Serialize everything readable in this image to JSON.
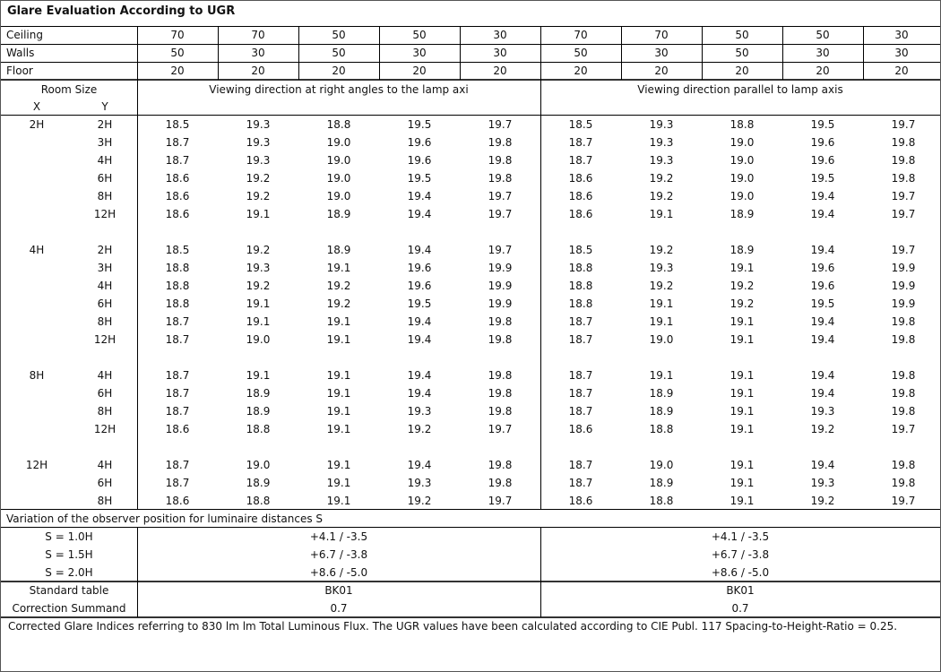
{
  "title": "Glare Evaluation According to UGR",
  "reflectances": {
    "ceiling": {
      "label": "Ceiling",
      "values": [
        "70",
        "70",
        "50",
        "50",
        "30",
        "70",
        "70",
        "50",
        "50",
        "30"
      ]
    },
    "walls": {
      "label": "Walls",
      "values": [
        "50",
        "30",
        "50",
        "30",
        "30",
        "50",
        "30",
        "50",
        "30",
        "30"
      ]
    },
    "floor": {
      "label": "Floor",
      "values": [
        "20",
        "20",
        "20",
        "20",
        "20",
        "20",
        "20",
        "20",
        "20",
        "20"
      ]
    }
  },
  "header": {
    "room_size": "Room Size",
    "x": "X",
    "y": "Y",
    "perpendicular": "Viewing direction at right angles to the lamp axi",
    "parallel": "Viewing direction parallel to lamp axis"
  },
  "groups": [
    {
      "x": "2H",
      "rows": [
        {
          "y": "2H",
          "values": [
            "18.5",
            "19.3",
            "18.8",
            "19.5",
            "19.7",
            "18.5",
            "19.3",
            "18.8",
            "19.5",
            "19.7"
          ]
        },
        {
          "y": "3H",
          "values": [
            "18.7",
            "19.3",
            "19.0",
            "19.6",
            "19.8",
            "18.7",
            "19.3",
            "19.0",
            "19.6",
            "19.8"
          ]
        },
        {
          "y": "4H",
          "values": [
            "18.7",
            "19.3",
            "19.0",
            "19.6",
            "19.8",
            "18.7",
            "19.3",
            "19.0",
            "19.6",
            "19.8"
          ]
        },
        {
          "y": "6H",
          "values": [
            "18.6",
            "19.2",
            "19.0",
            "19.5",
            "19.8",
            "18.6",
            "19.2",
            "19.0",
            "19.5",
            "19.8"
          ]
        },
        {
          "y": "8H",
          "values": [
            "18.6",
            "19.2",
            "19.0",
            "19.4",
            "19.7",
            "18.6",
            "19.2",
            "19.0",
            "19.4",
            "19.7"
          ]
        },
        {
          "y": "12H",
          "values": [
            "18.6",
            "19.1",
            "18.9",
            "19.4",
            "19.7",
            "18.6",
            "19.1",
            "18.9",
            "19.4",
            "19.7"
          ]
        }
      ]
    },
    {
      "x": "4H",
      "rows": [
        {
          "y": "2H",
          "values": [
            "18.5",
            "19.2",
            "18.9",
            "19.4",
            "19.7",
            "18.5",
            "19.2",
            "18.9",
            "19.4",
            "19.7"
          ]
        },
        {
          "y": "3H",
          "values": [
            "18.8",
            "19.3",
            "19.1",
            "19.6",
            "19.9",
            "18.8",
            "19.3",
            "19.1",
            "19.6",
            "19.9"
          ]
        },
        {
          "y": "4H",
          "values": [
            "18.8",
            "19.2",
            "19.2",
            "19.6",
            "19.9",
            "18.8",
            "19.2",
            "19.2",
            "19.6",
            "19.9"
          ]
        },
        {
          "y": "6H",
          "values": [
            "18.8",
            "19.1",
            "19.2",
            "19.5",
            "19.9",
            "18.8",
            "19.1",
            "19.2",
            "19.5",
            "19.9"
          ]
        },
        {
          "y": "8H",
          "values": [
            "18.7",
            "19.1",
            "19.1",
            "19.4",
            "19.8",
            "18.7",
            "19.1",
            "19.1",
            "19.4",
            "19.8"
          ]
        },
        {
          "y": "12H",
          "values": [
            "18.7",
            "19.0",
            "19.1",
            "19.4",
            "19.8",
            "18.7",
            "19.0",
            "19.1",
            "19.4",
            "19.8"
          ]
        }
      ]
    },
    {
      "x": "8H",
      "rows": [
        {
          "y": "4H",
          "values": [
            "18.7",
            "19.1",
            "19.1",
            "19.4",
            "19.8",
            "18.7",
            "19.1",
            "19.1",
            "19.4",
            "19.8"
          ]
        },
        {
          "y": "6H",
          "values": [
            "18.7",
            "18.9",
            "19.1",
            "19.4",
            "19.8",
            "18.7",
            "18.9",
            "19.1",
            "19.4",
            "19.8"
          ]
        },
        {
          "y": "8H",
          "values": [
            "18.7",
            "18.9",
            "19.1",
            "19.3",
            "19.8",
            "18.7",
            "18.9",
            "19.1",
            "19.3",
            "19.8"
          ]
        },
        {
          "y": "12H",
          "values": [
            "18.6",
            "18.8",
            "19.1",
            "19.2",
            "19.7",
            "18.6",
            "18.8",
            "19.1",
            "19.2",
            "19.7"
          ]
        }
      ]
    },
    {
      "x": "12H",
      "rows": [
        {
          "y": "4H",
          "values": [
            "18.7",
            "19.0",
            "19.1",
            "19.4",
            "19.8",
            "18.7",
            "19.0",
            "19.1",
            "19.4",
            "19.8"
          ]
        },
        {
          "y": "6H",
          "values": [
            "18.7",
            "18.9",
            "19.1",
            "19.3",
            "19.8",
            "18.7",
            "18.9",
            "19.1",
            "19.3",
            "19.8"
          ]
        },
        {
          "y": "8H",
          "values": [
            "18.6",
            "18.8",
            "19.1",
            "19.2",
            "19.7",
            "18.6",
            "18.8",
            "19.1",
            "19.2",
            "19.7"
          ]
        }
      ]
    }
  ],
  "variation": {
    "title": "Variation of the observer position for luminaire distances S",
    "rows": [
      {
        "label": "S = 1.0H",
        "perpendicular": "+4.1 / -3.5",
        "parallel": "+4.1 / -3.5"
      },
      {
        "label": "S = 1.5H",
        "perpendicular": "+6.7 / -3.8",
        "parallel": "+6.7 / -3.8"
      },
      {
        "label": "S = 2.0H",
        "perpendicular": "+8.6 / -5.0",
        "parallel": "+8.6 / -5.0"
      }
    ]
  },
  "standard": {
    "label": "Standard table",
    "perpendicular": "BK01",
    "parallel": "BK01",
    "correction_label": "Correction Summand",
    "correction_perpendicular": "0.7",
    "correction_parallel": "0.7"
  },
  "footer": "Corrected Glare Indices referring to 830 lm lm Total Luminous Flux. The UGR values have been calculated according to CIE Publ. 117    Spacing-to-Height-Ratio = 0.25."
}
